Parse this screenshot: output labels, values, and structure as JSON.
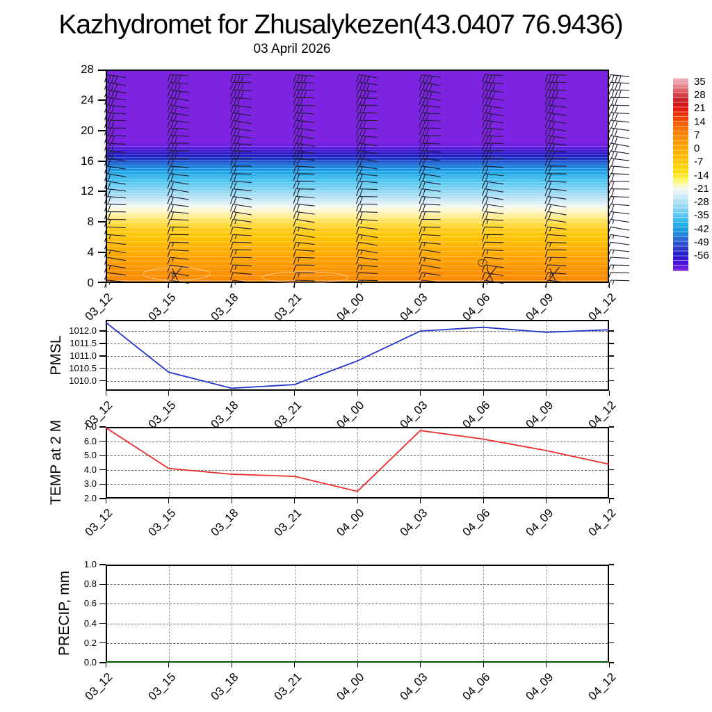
{
  "title": "Kazhydromet for Zhusalykezen(43.0407 76.9436)",
  "subtitle": "03 April 2026",
  "time_labels": [
    "03_12",
    "03_15",
    "03_18",
    "03_21",
    "04_00",
    "04_03",
    "04_06",
    "04_09",
    "04_12"
  ],
  "chart_data": [
    {
      "type": "heatmap",
      "name": "temperature-height-profile",
      "title": "03 April 2026",
      "x": [
        "03_12",
        "03_15",
        "03_18",
        "03_21",
        "04_00",
        "04_03",
        "04_06",
        "04_09",
        "04_12"
      ],
      "ylabel": "",
      "ylim": [
        0,
        28
      ],
      "ytick_values": [
        0,
        4,
        8,
        12,
        16,
        20,
        24,
        28
      ],
      "ytick_labels": [
        "0",
        "4",
        "8",
        "12",
        "16",
        "20",
        "24",
        "28"
      ],
      "bands_bottom_to_top": [
        {
          "range_km": "0-7",
          "color": "#fb8a00",
          "meaning": "warm orange (approx 7 to 14)"
        },
        {
          "range_km": "7-10.5",
          "color": "#ffd01e",
          "meaning": "yellow (approx 0 to 7)"
        },
        {
          "range_km": "10.5-11.5",
          "color": "#fdfad6",
          "meaning": "pale yellow (approx -7 to -14)"
        },
        {
          "range_km": "11.5-13",
          "color": "#a9def3",
          "meaning": "light blue (approx -21)"
        },
        {
          "range_km": "13-15.5",
          "color": "#23a9e9",
          "meaning": "cyan (approx -28 to -35)"
        },
        {
          "range_km": "15.5-17.5",
          "color": "#1f1cc2",
          "meaning": "dark blue (approx -42 to -56)"
        },
        {
          "range_km": "17.5-28",
          "color": "#7e23e2",
          "meaning": "purple (below -56)"
        }
      ],
      "wind_barbs": {
        "columns": 9,
        "levels_per_column": 28,
        "style": "staff pointing right with down-left feathers"
      },
      "colorbar": {
        "labels": [
          "35",
          "28",
          "21",
          "14",
          "7",
          "0",
          "-7",
          "-14",
          "-21",
          "-28",
          "-35",
          "-42",
          "-49",
          "-56"
        ]
      }
    },
    {
      "type": "line",
      "name": "PMSL",
      "ylabel": "PMSL",
      "color": "#2233cc",
      "x": [
        "03_12",
        "03_15",
        "03_18",
        "03_21",
        "04_00",
        "04_03",
        "04_06",
        "04_09",
        "04_12"
      ],
      "values": [
        1012.35,
        1010.35,
        1009.7,
        1009.85,
        1010.8,
        1012.0,
        1012.15,
        1011.95,
        1012.05
      ],
      "ylim": [
        1009.6,
        1012.45
      ],
      "ytick_values": [
        1010.0,
        1010.5,
        1011.0,
        1011.5,
        1012.0
      ],
      "ytick_labels": [
        "1010.0",
        "1010.5",
        "1011.0",
        "1011.5",
        "1012.0"
      ]
    },
    {
      "type": "line",
      "name": "TEMP at 2 M",
      "ylabel": "TEMP at 2 M",
      "color": "#ee2c2c",
      "x": [
        "03_12",
        "03_15",
        "03_18",
        "03_21",
        "04_00",
        "04_03",
        "04_06",
        "04_09",
        "04_12"
      ],
      "values": [
        6.95,
        4.1,
        3.7,
        3.55,
        2.5,
        6.75,
        6.15,
        5.35,
        4.4
      ],
      "ylim": [
        2.0,
        7.0
      ],
      "ytick_values": [
        2.0,
        3.0,
        4.0,
        5.0,
        6.0,
        7.0
      ],
      "ytick_labels": [
        "2.0",
        "3.0",
        "4.0",
        "5.0",
        "6.0",
        "7.0"
      ]
    },
    {
      "type": "line",
      "name": "PRECIP, mm",
      "ylabel": "PRECIP, mm",
      "color": "#006600",
      "x": [
        "03_12",
        "03_15",
        "03_18",
        "03_21",
        "04_00",
        "04_03",
        "04_06",
        "04_09",
        "04_12"
      ],
      "values": [
        0,
        0,
        0,
        0,
        0,
        0,
        0,
        0,
        0
      ],
      "ylim": [
        0.0,
        1.0
      ],
      "ytick_values": [
        0.0,
        0.2,
        0.4,
        0.6,
        0.8,
        1.0
      ],
      "ytick_labels": [
        "0.0",
        "0.2",
        "0.4",
        "0.6",
        "0.8",
        "1.0"
      ]
    }
  ]
}
